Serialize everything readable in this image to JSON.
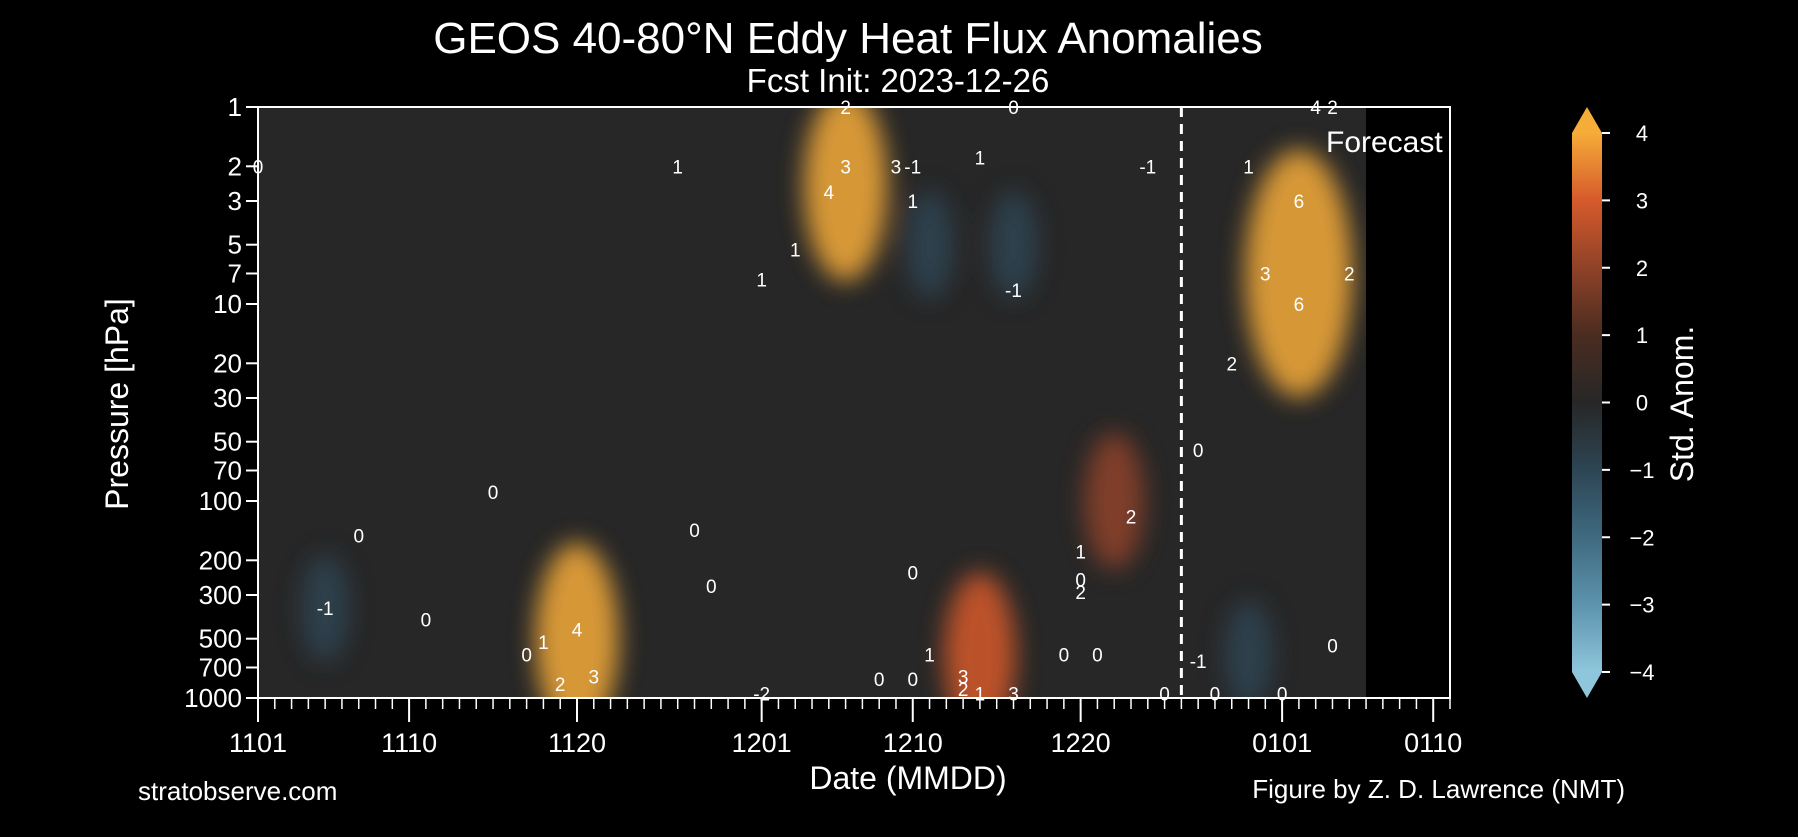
{
  "header": {
    "title": "GEOS 40-80°N Eddy Heat Flux Anomalies",
    "subtitle": "Fcst Init: 2023-12-26"
  },
  "footer": {
    "left_credit": "stratobserve.com",
    "right_credit": "Figure by Z. D. Lawrence (NMT)"
  },
  "chart_data": {
    "type": "heatmap",
    "title": "GEOS 40-80°N Eddy Heat Flux Anomalies",
    "subtitle": "Fcst Init: 2023-12-26",
    "xlabel": "Date (MMDD)",
    "ylabel": "Pressure [hPa]",
    "y_scale": "log",
    "y_inverted": true,
    "xlim": [
      "2023-11-01",
      "2024-01-11"
    ],
    "ylim": [
      1000,
      1
    ],
    "x_tick_labels": [
      {
        "date": "2023-11-01",
        "label": "1101"
      },
      {
        "date": "2023-11-10",
        "label": "1110"
      },
      {
        "date": "2023-11-20",
        "label": "1120"
      },
      {
        "date": "2023-12-01",
        "label": "1201"
      },
      {
        "date": "2023-12-10",
        "label": "1210"
      },
      {
        "date": "2023-12-20",
        "label": "1220"
      },
      {
        "date": "2024-01-01",
        "label": "0101"
      },
      {
        "date": "2024-01-10",
        "label": "0110"
      }
    ],
    "y_ticks": [
      1,
      2,
      3,
      5,
      7,
      10,
      20,
      30,
      50,
      70,
      100,
      200,
      300,
      500,
      700,
      1000
    ],
    "forecast_init_date": "2023-12-26",
    "forecast_label": "Forecast",
    "data_end_date": "2024-01-06",
    "colorbar": {
      "label": "Std. Anom.",
      "range": [
        -4,
        4
      ],
      "ticks": [
        4,
        3,
        2,
        1,
        0,
        -1,
        -2,
        -3,
        -4
      ],
      "extend": "both",
      "colors": {
        "neg4": "#8ec6dc",
        "neg3": "#5d93ad",
        "neg2": "#3f6a80",
        "neg1": "#2d4553",
        "zero": "#272727",
        "pos1": "#4a2c20",
        "pos2": "#8f4228",
        "pos3": "#d65a2c",
        "pos4": "#f6ac38"
      }
    },
    "anomaly_features": [
      {
        "date": "2023-11-20",
        "pressure": 500,
        "value": 4
      },
      {
        "date": "2023-12-06",
        "pressure": 2.5,
        "value": 4
      },
      {
        "date": "2023-12-14",
        "pressure": 600,
        "value": 3
      },
      {
        "date": "2023-12-22",
        "pressure": 100,
        "value": 2
      },
      {
        "date": "2023-12-11",
        "pressure": 5,
        "value": -1
      },
      {
        "date": "2023-12-16",
        "pressure": 5,
        "value": -1
      },
      {
        "date": "2023-11-05",
        "pressure": 350,
        "value": -1
      },
      {
        "date": "2023-12-30",
        "pressure": 600,
        "value": -1
      },
      {
        "date": "2024-01-02",
        "pressure": 7,
        "value": 6
      }
    ],
    "contour_labels": [
      {
        "date": "2023-11-01",
        "pressure": 2,
        "text": "0"
      },
      {
        "date": "2023-11-05",
        "pressure": 350,
        "text": "-1"
      },
      {
        "date": "2023-11-07",
        "pressure": 150,
        "text": "0"
      },
      {
        "date": "2023-11-11",
        "pressure": 400,
        "text": "0"
      },
      {
        "date": "2023-11-15",
        "pressure": 90,
        "text": "0"
      },
      {
        "date": "2023-11-17",
        "pressure": 600,
        "text": "0"
      },
      {
        "date": "2023-11-18",
        "pressure": 520,
        "text": "1"
      },
      {
        "date": "2023-11-20",
        "pressure": 450,
        "text": "4"
      },
      {
        "date": "2023-11-19",
        "pressure": 850,
        "text": "2"
      },
      {
        "date": "2023-11-21",
        "pressure": 780,
        "text": "3"
      },
      {
        "date": "2023-11-27",
        "pressure": 140,
        "text": "0"
      },
      {
        "date": "2023-11-28",
        "pressure": 270,
        "text": "0"
      },
      {
        "date": "2023-11-26",
        "pressure": 2,
        "text": "1"
      },
      {
        "date": "2023-12-01",
        "pressure": 950,
        "text": "-2"
      },
      {
        "date": "2023-12-01",
        "pressure": 7.5,
        "text": "1"
      },
      {
        "date": "2023-12-03",
        "pressure": 5.3,
        "text": "1"
      },
      {
        "date": "2023-12-06",
        "pressure": 1,
        "text": "2"
      },
      {
        "date": "2023-12-06",
        "pressure": 2,
        "text": "3"
      },
      {
        "date": "2023-12-05",
        "pressure": 2.7,
        "text": "4"
      },
      {
        "date": "2023-12-08",
        "pressure": 800,
        "text": "0"
      },
      {
        "date": "2023-12-09",
        "pressure": 2,
        "text": "3"
      },
      {
        "date": "2023-12-10",
        "pressure": 2,
        "text": "-1"
      },
      {
        "date": "2023-12-10",
        "pressure": 3,
        "text": "1"
      },
      {
        "date": "2023-12-10",
        "pressure": 230,
        "text": "0"
      },
      {
        "date": "2023-12-11",
        "pressure": 600,
        "text": "1"
      },
      {
        "date": "2023-12-10",
        "pressure": 800,
        "text": "0"
      },
      {
        "date": "2023-12-14",
        "pressure": 1.8,
        "text": "1"
      },
      {
        "date": "2023-12-13",
        "pressure": 780,
        "text": "3"
      },
      {
        "date": "2023-12-13",
        "pressure": 900,
        "text": "2"
      },
      {
        "date": "2023-12-14",
        "pressure": 950,
        "text": "1"
      },
      {
        "date": "2023-12-16",
        "pressure": 950,
        "text": "3"
      },
      {
        "date": "2023-12-16",
        "pressure": 1,
        "text": "0"
      },
      {
        "date": "2023-12-16",
        "pressure": 8.5,
        "text": "-1"
      },
      {
        "date": "2023-12-19",
        "pressure": 600,
        "text": "0"
      },
      {
        "date": "2023-12-21",
        "pressure": 600,
        "text": "0"
      },
      {
        "date": "2023-12-20",
        "pressure": 250,
        "text": "0"
      },
      {
        "date": "2023-12-20",
        "pressure": 180,
        "text": "1"
      },
      {
        "date": "2023-12-20",
        "pressure": 290,
        "text": "2"
      },
      {
        "date": "2023-12-23",
        "pressure": 120,
        "text": "2"
      },
      {
        "date": "2023-12-24",
        "pressure": 2,
        "text": "-1"
      },
      {
        "date": "2023-12-25",
        "pressure": 950,
        "text": "0"
      },
      {
        "date": "2023-12-28",
        "pressure": 950,
        "text": "0"
      },
      {
        "date": "2023-12-27",
        "pressure": 650,
        "text": "-1"
      },
      {
        "date": "2023-12-27",
        "pressure": 55,
        "text": "0"
      },
      {
        "date": "2023-12-29",
        "pressure": 20,
        "text": "2"
      },
      {
        "date": "2023-12-30",
        "pressure": 2,
        "text": "1"
      },
      {
        "date": "2023-12-31",
        "pressure": 7,
        "text": "3"
      },
      {
        "date": "2024-01-02",
        "pressure": 3,
        "text": "6"
      },
      {
        "date": "2024-01-02",
        "pressure": 10,
        "text": "6"
      },
      {
        "date": "2024-01-01",
        "pressure": 950,
        "text": "0"
      },
      {
        "date": "2024-01-04",
        "pressure": 540,
        "text": "0"
      },
      {
        "date": "2024-01-05",
        "pressure": 7,
        "text": "2"
      },
      {
        "date": "2024-01-03",
        "pressure": 1,
        "text": "4"
      },
      {
        "date": "2024-01-04",
        "pressure": 1,
        "text": "2"
      }
    ]
  }
}
